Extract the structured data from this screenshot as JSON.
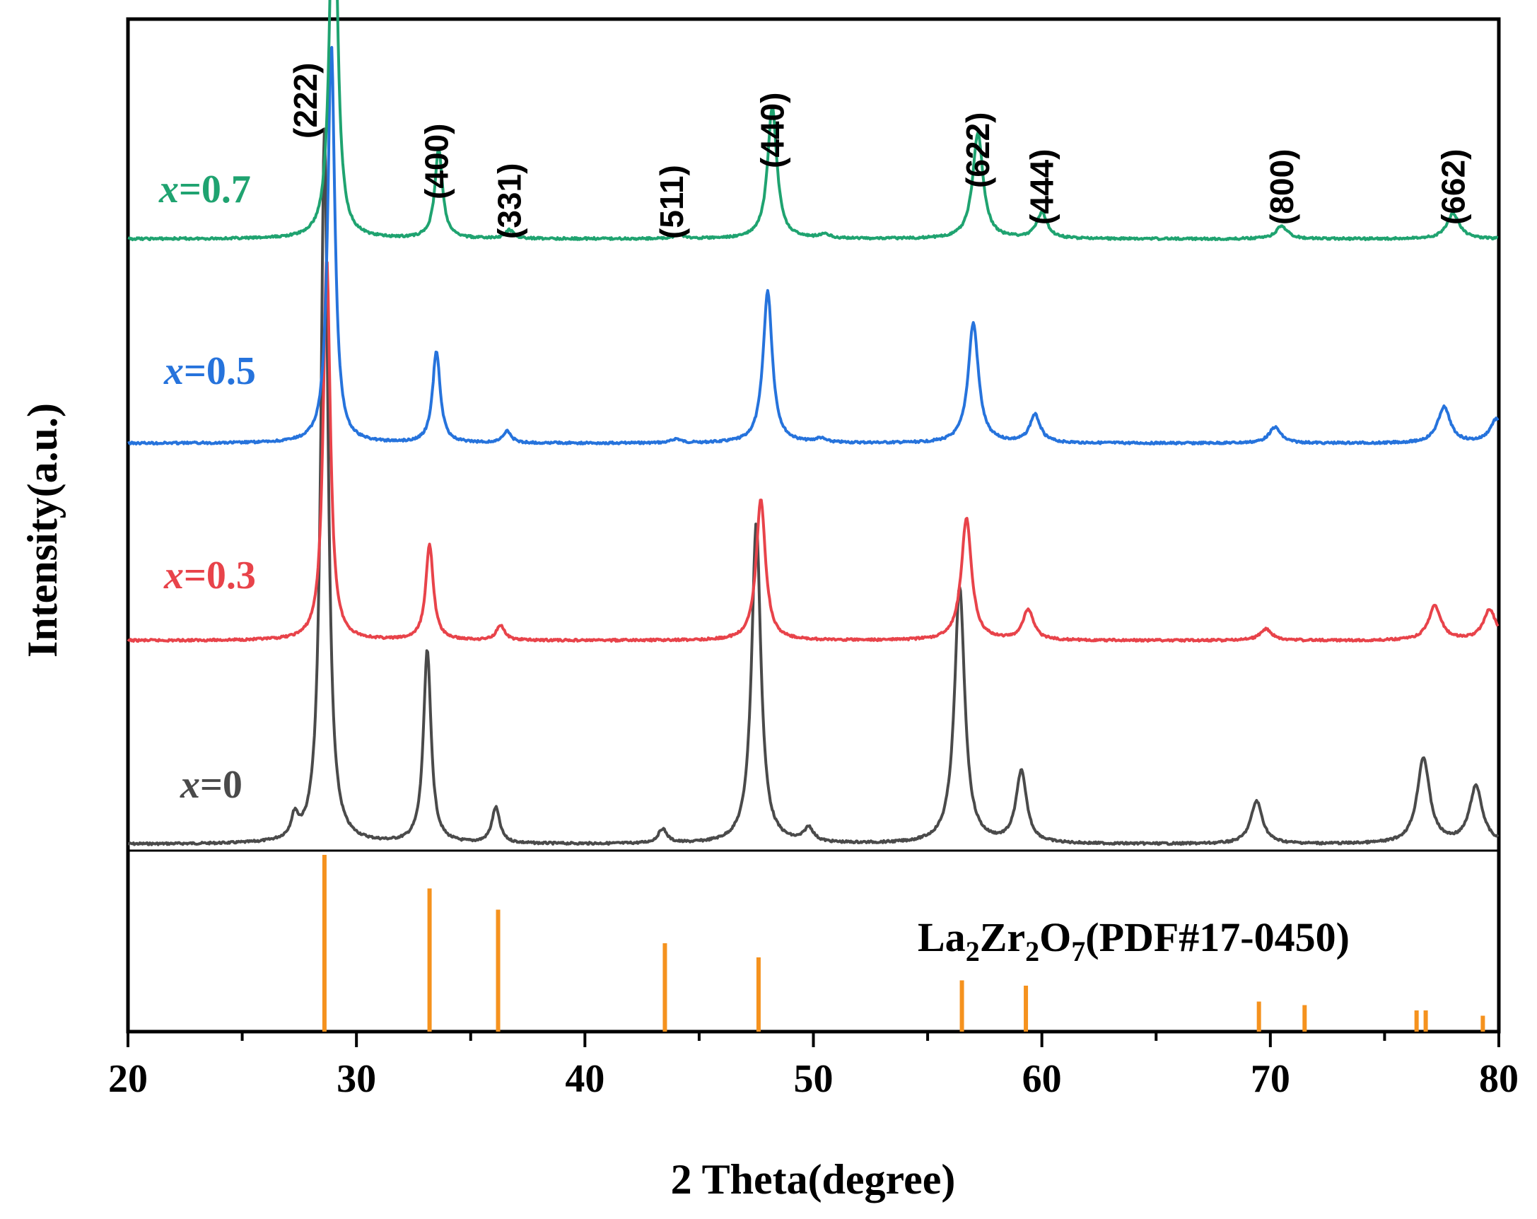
{
  "chart_data": {
    "type": "line",
    "xlabel": "2 Theta(degree)",
    "ylabel": "Intensity(a.u.)",
    "xlim": [
      20,
      80
    ],
    "xticks": [
      20,
      30,
      40,
      50,
      60,
      70,
      80
    ],
    "xtick_labels": [
      "20",
      "30",
      "40",
      "50",
      "60",
      "70",
      "80"
    ],
    "y_ticks_shown": false,
    "grid": false,
    "series": [
      {
        "name_var": "x",
        "name_eq": "=0",
        "name_val": "0",
        "color": "#4a4a4a",
        "peaks": [
          [
            27.3,
            0.03
          ],
          [
            28.6,
            1.0
          ],
          [
            33.1,
            0.27
          ],
          [
            36.1,
            0.05
          ],
          [
            43.4,
            0.02
          ],
          [
            47.5,
            0.45
          ],
          [
            49.8,
            0.02
          ],
          [
            56.4,
            0.36
          ],
          [
            59.1,
            0.1
          ],
          [
            69.4,
            0.06
          ],
          [
            76.7,
            0.12
          ],
          [
            79.0,
            0.08
          ]
        ]
      },
      {
        "name_var": "x",
        "name_eq": "=0.3",
        "name_val": "0.3",
        "color": "#e8434a",
        "peaks": [
          [
            28.7,
            1.0
          ],
          [
            33.2,
            0.25
          ],
          [
            36.3,
            0.04
          ],
          [
            47.7,
            0.37
          ],
          [
            56.7,
            0.32
          ],
          [
            59.4,
            0.08
          ],
          [
            69.8,
            0.03
          ],
          [
            77.2,
            0.09
          ],
          [
            79.6,
            0.08
          ]
        ]
      },
      {
        "name_var": "x",
        "name_eq": "=0.5",
        "name_val": "0.5",
        "color": "#2673dc",
        "peaks": [
          [
            28.9,
            1.0
          ],
          [
            33.5,
            0.23
          ],
          [
            36.6,
            0.03
          ],
          [
            44.0,
            0.01
          ],
          [
            48.0,
            0.38
          ],
          [
            50.3,
            0.01
          ],
          [
            57.0,
            0.3
          ],
          [
            59.7,
            0.07
          ],
          [
            70.2,
            0.04
          ],
          [
            77.6,
            0.09
          ],
          [
            79.9,
            0.06
          ]
        ]
      },
      {
        "name_var": "x",
        "name_eq": "=0.7",
        "name_val": "0.7",
        "color": "#1fa370",
        "peaks": [
          [
            29.0,
            1.0
          ],
          [
            33.6,
            0.21
          ],
          [
            36.7,
            0.02
          ],
          [
            44.1,
            0.01
          ],
          [
            48.2,
            0.31
          ],
          [
            50.5,
            0.01
          ],
          [
            57.2,
            0.25
          ],
          [
            60.0,
            0.06
          ],
          [
            70.5,
            0.03
          ],
          [
            78.0,
            0.06
          ]
        ]
      }
    ],
    "reference": {
      "name_parts": [
        "La",
        "2",
        "Zr",
        "2",
        "O",
        "7",
        "(PDF#17-0450)"
      ],
      "color": "#f5921e",
      "lines": [
        [
          28.6,
          1.0
        ],
        [
          33.2,
          0.81
        ],
        [
          36.2,
          0.69
        ],
        [
          43.5,
          0.5
        ],
        [
          47.6,
          0.42
        ],
        [
          56.5,
          0.29
        ],
        [
          59.3,
          0.26
        ],
        [
          69.5,
          0.17
        ],
        [
          71.5,
          0.15
        ],
        [
          76.4,
          0.12
        ],
        [
          76.8,
          0.12
        ],
        [
          79.3,
          0.09
        ]
      ]
    },
    "hkl_annotations": [
      {
        "label": "(222)",
        "x": 28.6
      },
      {
        "label": "(400)",
        "x": 33.5
      },
      {
        "label": "(331)",
        "x": 36.7
      },
      {
        "label": "(511)",
        "x": 44.1
      },
      {
        "label": "(440)",
        "x": 48.2
      },
      {
        "label": "(622)",
        "x": 57.2
      },
      {
        "label": "(444)",
        "x": 60.0
      },
      {
        "label": "(800)",
        "x": 70.5
      },
      {
        "label": "(662)",
        "x": 78.0
      }
    ]
  }
}
